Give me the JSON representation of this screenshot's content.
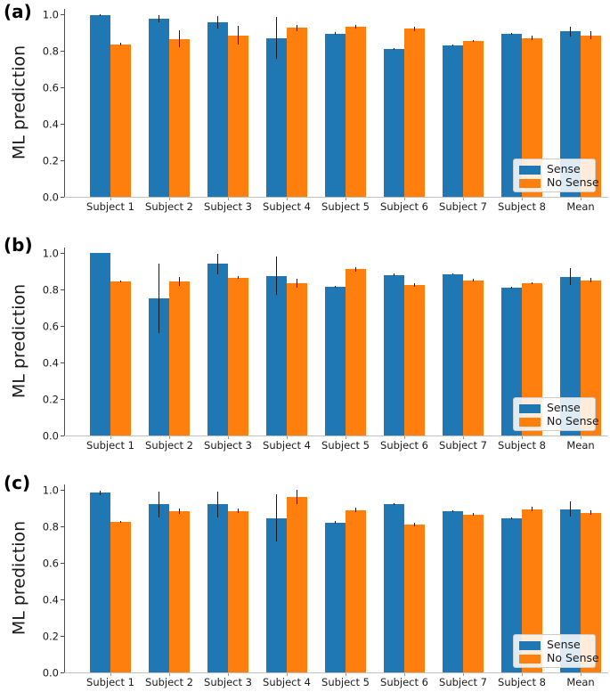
{
  "figure": {
    "background": "#ffffff",
    "panel_labels": [
      "(a)",
      "(b)",
      "(c)"
    ],
    "legend": {
      "position": "lower right",
      "entries": [
        {
          "label": "Sense",
          "color": "#1f77b4"
        },
        {
          "label": "No Sense",
          "color": "#ff7f0e"
        }
      ]
    },
    "colors": {
      "sense": "#1f77b4",
      "no_sense": "#ff7f0e",
      "error_bar": "#1a1a1a"
    }
  },
  "chart_data": [
    {
      "panel_label": "(a)",
      "type": "bar",
      "title": "",
      "xlabel": "",
      "ylabel": "ML prediction",
      "ylim": [
        0.0,
        1.03
      ],
      "grid": false,
      "legend_position": "lower right",
      "yticks": [
        "0.0",
        "0.2",
        "0.4",
        "0.6",
        "0.8",
        "1.0"
      ],
      "categories": [
        "Subject 1",
        "Subject 2",
        "Subject 3",
        "Subject 4",
        "Subject 5",
        "Subject 6",
        "Subject 7",
        "Subject 8",
        "Mean"
      ],
      "series": [
        {
          "name": "Sense",
          "color": "#1f77b4",
          "values": [
            0.995,
            0.975,
            0.955,
            0.87,
            0.895,
            0.81,
            0.83,
            0.895,
            0.905
          ],
          "errors": [
            0.004,
            0.02,
            0.035,
            0.115,
            0.007,
            0.004,
            0.005,
            0.005,
            0.028
          ]
        },
        {
          "name": "No Sense",
          "color": "#ff7f0e",
          "values": [
            0.835,
            0.865,
            0.885,
            0.925,
            0.93,
            0.92,
            0.855,
            0.87,
            0.885
          ],
          "errors": [
            0.007,
            0.045,
            0.05,
            0.018,
            0.01,
            0.012,
            0.005,
            0.012,
            0.022
          ]
        }
      ]
    },
    {
      "panel_label": "(b)",
      "type": "bar",
      "title": "",
      "xlabel": "",
      "ylabel": "ML prediction",
      "ylim": [
        0.0,
        1.03
      ],
      "grid": false,
      "legend_position": "lower right",
      "yticks": [
        "0.0",
        "0.2",
        "0.4",
        "0.6",
        "0.8",
        "1.0"
      ],
      "categories": [
        "Subject 1",
        "Subject 2",
        "Subject 3",
        "Subject 4",
        "Subject 5",
        "Subject 6",
        "Subject 7",
        "Subject 8",
        "Mean"
      ],
      "series": [
        {
          "name": "Sense",
          "color": "#1f77b4",
          "values": [
            1.0,
            0.75,
            0.94,
            0.875,
            0.815,
            0.88,
            0.885,
            0.81,
            0.87
          ],
          "errors": [
            0.0,
            0.19,
            0.055,
            0.105,
            0.005,
            0.006,
            0.004,
            0.007,
            0.047
          ]
        },
        {
          "name": "No Sense",
          "color": "#ff7f0e",
          "values": [
            0.845,
            0.845,
            0.865,
            0.835,
            0.91,
            0.825,
            0.85,
            0.835,
            0.85
          ],
          "errors": [
            0.004,
            0.025,
            0.008,
            0.025,
            0.011,
            0.008,
            0.008,
            0.005,
            0.012
          ]
        }
      ]
    },
    {
      "panel_label": "(c)",
      "type": "bar",
      "title": "",
      "xlabel": "",
      "ylabel": "ML prediction",
      "ylim": [
        0.0,
        1.03
      ],
      "grid": false,
      "legend_position": "lower right",
      "yticks": [
        "0.0",
        "0.2",
        "0.4",
        "0.6",
        "0.8",
        "1.0"
      ],
      "categories": [
        "Subject 1",
        "Subject 2",
        "Subject 3",
        "Subject 4",
        "Subject 5",
        "Subject 6",
        "Subject 7",
        "Subject 8",
        "Mean"
      ],
      "series": [
        {
          "name": "Sense",
          "color": "#1f77b4",
          "values": [
            0.985,
            0.92,
            0.92,
            0.845,
            0.82,
            0.92,
            0.885,
            0.845,
            0.895
          ],
          "errors": [
            0.012,
            0.07,
            0.07,
            0.13,
            0.007,
            0.005,
            0.005,
            0.005,
            0.04
          ]
        },
        {
          "name": "No Sense",
          "color": "#ff7f0e",
          "values": [
            0.825,
            0.885,
            0.885,
            0.96,
            0.89,
            0.81,
            0.865,
            0.895,
            0.875
          ],
          "errors": [
            0.005,
            0.015,
            0.012,
            0.04,
            0.011,
            0.011,
            0.007,
            0.011,
            0.012
          ]
        }
      ]
    }
  ]
}
